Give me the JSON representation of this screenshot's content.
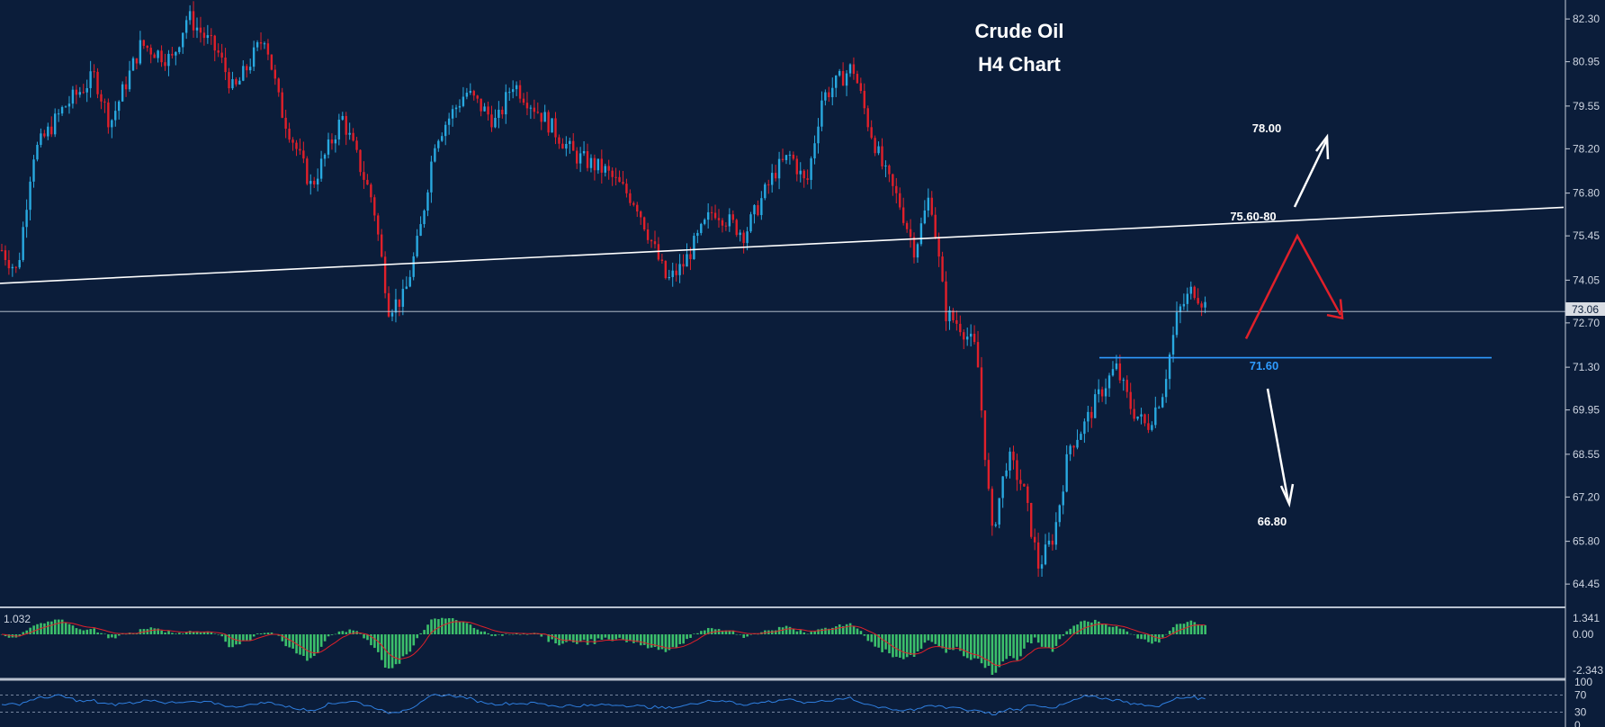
{
  "chart_data": [
    {
      "type": "candlestick",
      "title": "Crude Oil",
      "subtitle": "H4 Chart",
      "ylim": [
        63.8,
        82.9
      ],
      "y_ticks": [
        "82.30",
        "80.95",
        "79.55",
        "78.20",
        "76.80",
        "75.45",
        "74.05",
        "72.70",
        "71.30",
        "69.95",
        "68.55",
        "67.20",
        "65.80",
        "64.45"
      ],
      "current_price": "73.06",
      "colors": {
        "bull": "#29a9e0",
        "bear": "#e0202a",
        "background": "#0b1d3a",
        "grid_text": "#cfd6e2"
      },
      "price_path": [
        {
          "t": 0.0,
          "p": 75.0
        },
        {
          "t": 0.01,
          "p": 74.3
        },
        {
          "t": 0.02,
          "p": 78.0
        },
        {
          "t": 0.04,
          "p": 79.5
        },
        {
          "t": 0.06,
          "p": 80.5
        },
        {
          "t": 0.07,
          "p": 79.0
        },
        {
          "t": 0.09,
          "p": 81.5
        },
        {
          "t": 0.11,
          "p": 81.0
        },
        {
          "t": 0.12,
          "p": 82.4
        },
        {
          "t": 0.14,
          "p": 81.2
        },
        {
          "t": 0.15,
          "p": 80.0
        },
        {
          "t": 0.17,
          "p": 81.8
        },
        {
          "t": 0.18,
          "p": 79.5
        },
        {
          "t": 0.2,
          "p": 77.0
        },
        {
          "t": 0.22,
          "p": 79.2
        },
        {
          "t": 0.24,
          "p": 76.5
        },
        {
          "t": 0.25,
          "p": 73.2
        },
        {
          "t": 0.26,
          "p": 73.5
        },
        {
          "t": 0.27,
          "p": 75.5
        },
        {
          "t": 0.28,
          "p": 78.5
        },
        {
          "t": 0.3,
          "p": 80.0
        },
        {
          "t": 0.32,
          "p": 79.0
        },
        {
          "t": 0.33,
          "p": 80.3
        },
        {
          "t": 0.35,
          "p": 79.2
        },
        {
          "t": 0.37,
          "p": 78.0
        },
        {
          "t": 0.39,
          "p": 77.5
        },
        {
          "t": 0.41,
          "p": 76.5
        },
        {
          "t": 0.43,
          "p": 74.0
        },
        {
          "t": 0.44,
          "p": 74.5
        },
        {
          "t": 0.46,
          "p": 76.3
        },
        {
          "t": 0.48,
          "p": 75.5
        },
        {
          "t": 0.5,
          "p": 77.5
        },
        {
          "t": 0.51,
          "p": 78.0
        },
        {
          "t": 0.52,
          "p": 77.0
        },
        {
          "t": 0.53,
          "p": 79.8
        },
        {
          "t": 0.55,
          "p": 80.8
        },
        {
          "t": 0.56,
          "p": 79.0
        },
        {
          "t": 0.57,
          "p": 77.5
        },
        {
          "t": 0.58,
          "p": 76.5
        },
        {
          "t": 0.59,
          "p": 75.0
        },
        {
          "t": 0.6,
          "p": 76.8
        },
        {
          "t": 0.61,
          "p": 73.0
        },
        {
          "t": 0.62,
          "p": 72.6
        },
        {
          "t": 0.63,
          "p": 71.8
        },
        {
          "t": 0.64,
          "p": 66.0
        },
        {
          "t": 0.65,
          "p": 68.5
        },
        {
          "t": 0.66,
          "p": 67.5
        },
        {
          "t": 0.67,
          "p": 65.0
        },
        {
          "t": 0.68,
          "p": 66.0
        },
        {
          "t": 0.69,
          "p": 68.8
        },
        {
          "t": 0.7,
          "p": 69.5
        },
        {
          "t": 0.71,
          "p": 70.5
        },
        {
          "t": 0.72,
          "p": 71.3
        },
        {
          "t": 0.73,
          "p": 70.0
        },
        {
          "t": 0.74,
          "p": 69.4
        },
        {
          "t": 0.75,
          "p": 70.5
        },
        {
          "t": 0.76,
          "p": 73.0
        },
        {
          "t": 0.77,
          "p": 73.8
        },
        {
          "t": 0.78,
          "p": 73.1
        }
      ],
      "annotations": {
        "resistance_label": "75.60-80",
        "support_label": "71.60",
        "up_target": "78.00",
        "down_target": "66.80"
      },
      "annotation_colors": {
        "white": "#ffffff",
        "blue": "#2f9bff",
        "red": "#e0202a"
      }
    },
    {
      "type": "bar",
      "name": "oscillator",
      "value_label": "1.032",
      "y_ticks": [
        "1.341",
        "0.00",
        "-2.343"
      ],
      "colors": {
        "bars": "#3cbf6b",
        "signal": "#e0202a"
      }
    },
    {
      "type": "line",
      "name": "rsi",
      "y_ticks": [
        "100",
        "70",
        "30",
        "0"
      ],
      "colors": {
        "line": "#2f7fe0",
        "levels": "#9aa8bf"
      }
    }
  ]
}
